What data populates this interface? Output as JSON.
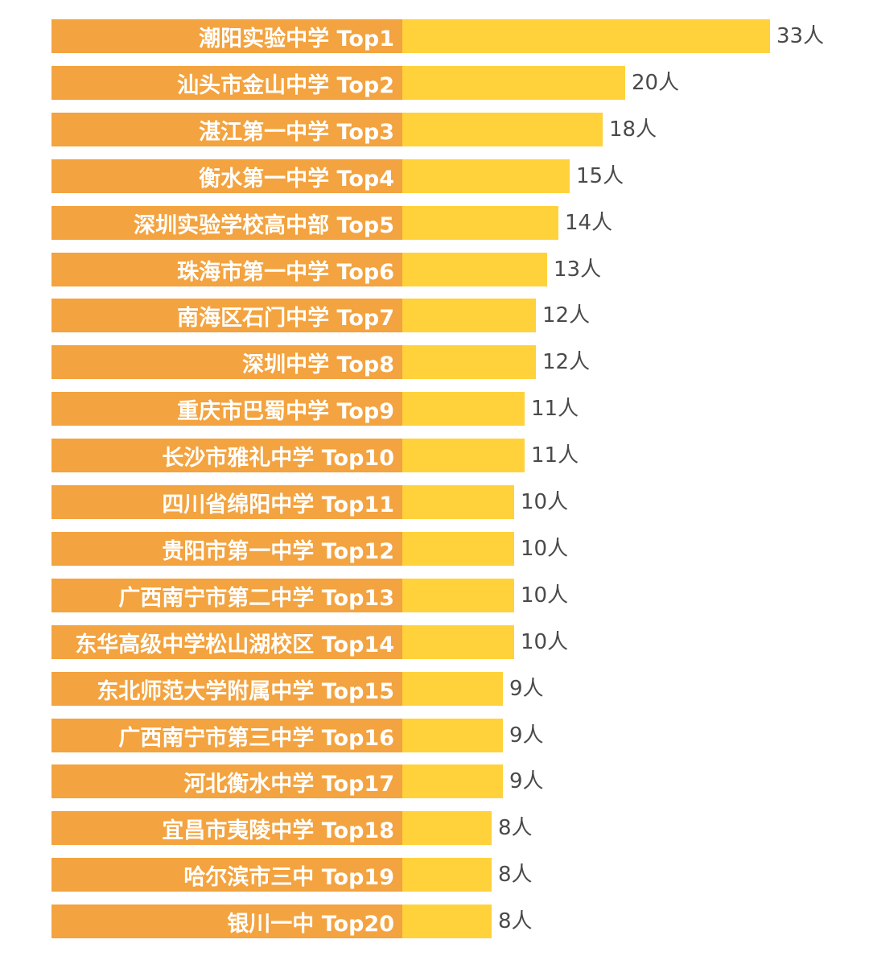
{
  "chart_data": {
    "type": "bar",
    "orientation": "horizontal",
    "title": "",
    "xlabel": "",
    "ylabel": "",
    "unit": "人",
    "xlim": [
      0,
      33
    ],
    "colors": {
      "label_block": "#f3a33f",
      "bar": "#ffd23c",
      "label_text": "#ffffff",
      "value_text": "#4a4a4a"
    },
    "categories": [
      "潮阳实验中学 Top1",
      "汕头市金山中学 Top2",
      "湛江第一中学 Top3",
      "衡水第一中学 Top4",
      "深圳实验学校高中部 Top5",
      "珠海市第一中学 Top6",
      "南海区石门中学 Top7",
      "深圳中学 Top8",
      "重庆市巴蜀中学 Top9",
      "长沙市雅礼中学 Top10",
      "四川省绵阳中学 Top11",
      "贵阳市第一中学 Top12",
      "广西南宁市第二中学 Top13",
      "东华高级中学松山湖校区 Top14",
      "东北师范大学附属中学 Top15",
      "广西南宁市第三中学 Top16",
      "河北衡水中学 Top17",
      "宜昌市夷陵中学 Top18",
      "哈尔滨市三中 Top19",
      "银川一中 Top20"
    ],
    "values": [
      33,
      20,
      18,
      15,
      14,
      13,
      12,
      12,
      11,
      11,
      10,
      10,
      10,
      10,
      9,
      9,
      9,
      8,
      8,
      8
    ],
    "value_labels": [
      "33人",
      "20人",
      "18人",
      "15人",
      "14人",
      "13人",
      "12人",
      "12人",
      "11人",
      "11人",
      "10人",
      "10人",
      "10人",
      "10人",
      "9人",
      "9人",
      "9人",
      "8人",
      "8人",
      "8人"
    ]
  }
}
